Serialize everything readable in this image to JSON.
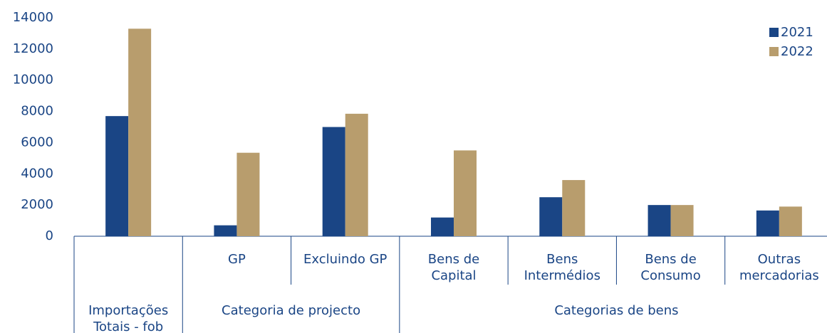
{
  "chart_data": {
    "type": "bar",
    "groups": [
      {
        "label": [
          "Importações",
          "Totais - fob"
        ],
        "categories": [
          null
        ]
      },
      {
        "label": [
          "Categoria de projecto"
        ],
        "categories": [
          [
            "GP"
          ],
          [
            "Excluindo GP"
          ]
        ]
      },
      {
        "label": [
          "Categorias de bens"
        ],
        "categories": [
          [
            "Bens de",
            "Capital"
          ],
          [
            "Bens",
            "Intermédios"
          ],
          [
            "Bens de",
            "Consumo"
          ],
          [
            "Outras",
            "mercadorias"
          ]
        ]
      }
    ],
    "series": [
      {
        "name": "2021",
        "color": "#1a4585",
        "values": [
          7700,
          700,
          7000,
          1200,
          2500,
          2000,
          1650
        ]
      },
      {
        "name": "2022",
        "color": "#b89d6d",
        "values": [
          13300,
          5350,
          7850,
          5500,
          3600,
          2000,
          1900
        ]
      }
    ],
    "ylim": [
      0,
      14000
    ],
    "yticks": [
      0,
      2000,
      4000,
      6000,
      8000,
      10000,
      12000,
      14000
    ],
    "legend": "top-right"
  }
}
